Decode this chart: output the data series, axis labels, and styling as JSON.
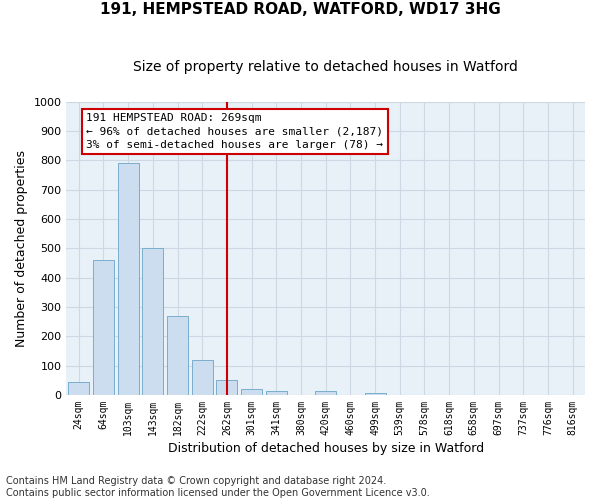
{
  "title": "191, HEMPSTEAD ROAD, WATFORD, WD17 3HG",
  "subtitle": "Size of property relative to detached houses in Watford",
  "xlabel": "Distribution of detached houses by size in Watford",
  "ylabel": "Number of detached properties",
  "footnote1": "Contains HM Land Registry data © Crown copyright and database right 2024.",
  "footnote2": "Contains public sector information licensed under the Open Government Licence v3.0.",
  "bar_color": "#ccddf0",
  "bar_edge_color": "#7aaecc",
  "annotation_box_color": "#cc0000",
  "vline_color": "#cc0000",
  "categories": [
    "24sqm",
    "64sqm",
    "103sqm",
    "143sqm",
    "182sqm",
    "222sqm",
    "262sqm",
    "301sqm",
    "341sqm",
    "380sqm",
    "420sqm",
    "460sqm",
    "499sqm",
    "539sqm",
    "578sqm",
    "618sqm",
    "658sqm",
    "697sqm",
    "737sqm",
    "776sqm",
    "816sqm"
  ],
  "values": [
    45,
    460,
    790,
    500,
    270,
    120,
    50,
    20,
    13,
    0,
    12,
    0,
    8,
    0,
    0,
    0,
    0,
    0,
    0,
    0,
    0
  ],
  "vline_position": 6.0,
  "annotation_text": "191 HEMPSTEAD ROAD: 269sqm\n← 96% of detached houses are smaller (2,187)\n3% of semi-detached houses are larger (78) →",
  "ylim": [
    0,
    1000
  ],
  "yticks": [
    0,
    100,
    200,
    300,
    400,
    500,
    600,
    700,
    800,
    900,
    1000
  ],
  "grid_color": "#ccd8e4",
  "bg_color": "#e8f0f8",
  "title_fontsize": 11,
  "subtitle_fontsize": 10,
  "ylabel_fontsize": 9,
  "xlabel_fontsize": 9,
  "tick_fontsize": 8,
  "annotation_fontsize": 8,
  "footnote_fontsize": 7
}
